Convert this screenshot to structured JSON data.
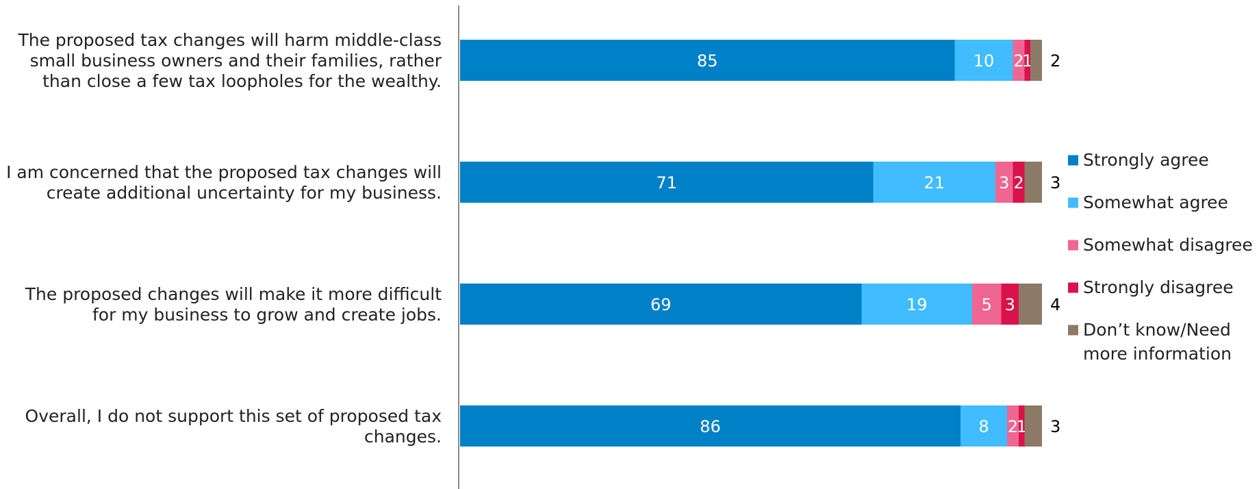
{
  "chart_data": {
    "type": "bar",
    "orientation": "horizontal",
    "stacked": true,
    "categories": [
      "The proposed tax changes will harm middle-class small business owners and their families, rather than close a few tax loopholes for the wealthy.",
      "I am concerned that the proposed tax changes will create additional uncertainty for my business.",
      "The proposed changes will make it more difficult for my business to grow and create jobs.",
      "Overall, I do not support this set of proposed tax changes."
    ],
    "category_lines": [
      [
        "The proposed tax changes will harm middle-class",
        "small business owners and their families, rather",
        "than close a few tax loopholes for the wealthy."
      ],
      [
        "I am concerned that the proposed tax changes will",
        "create additional uncertainty for my business."
      ],
      [
        "The proposed changes will make it more difficult",
        "for my business to grow and create jobs."
      ],
      [
        "Overall, I do not support this set of proposed tax",
        "changes."
      ]
    ],
    "series": [
      {
        "name": "Strongly agree",
        "color": "#0080c6",
        "values": [
          85,
          71,
          69,
          86
        ]
      },
      {
        "name": "Somewhat agree",
        "color": "#41bcff",
        "values": [
          10,
          21,
          19,
          8
        ]
      },
      {
        "name": "Somewhat disagree",
        "color": "#ef6693",
        "values": [
          2,
          3,
          5,
          2
        ]
      },
      {
        "name": "Strongly disagree",
        "color": "#d9134a",
        "values": [
          1,
          2,
          3,
          1
        ]
      },
      {
        "name": "Don’t know/Need more information",
        "legend_lines": [
          "Don’t know/Need",
          "more information"
        ],
        "color": "#8c7a66",
        "values": [
          2,
          3,
          4,
          3
        ]
      }
    ],
    "xlim": [
      0,
      100
    ],
    "grid": false,
    "legend_position": "right"
  }
}
